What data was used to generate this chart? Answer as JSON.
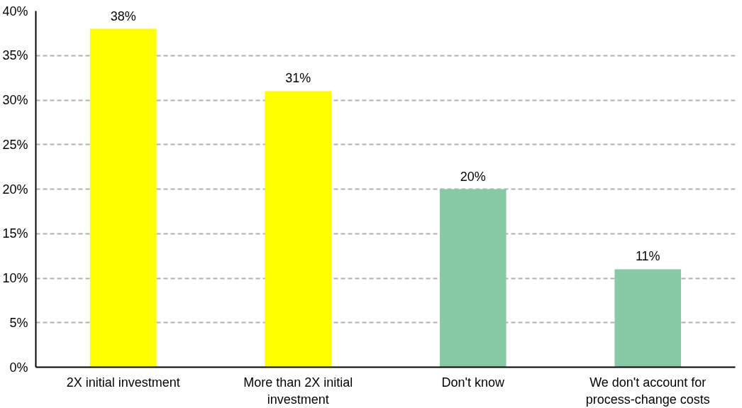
{
  "chart_data": {
    "type": "bar",
    "categories": [
      "2X initial investment",
      "More than 2X initial investment",
      "Don't know",
      "We don't account for process-change costs"
    ],
    "values": [
      38,
      31,
      20,
      11
    ],
    "colors": [
      "#ffff00",
      "#ffff00",
      "#88c9a5",
      "#88c9a5"
    ],
    "value_labels": [
      "38%",
      "31%",
      "20%",
      "11%"
    ],
    "ylim": [
      0,
      40
    ],
    "yticks": [
      {
        "value": 0,
        "label": "0%"
      },
      {
        "value": 5,
        "label": "5%"
      },
      {
        "value": 10,
        "label": "10%"
      },
      {
        "value": 15,
        "label": "15%"
      },
      {
        "value": 20,
        "label": "20%"
      },
      {
        "value": 25,
        "label": "25%"
      },
      {
        "value": 30,
        "label": "30%"
      },
      {
        "value": 35,
        "label": "35%"
      },
      {
        "value": 40,
        "label": "40%"
      }
    ],
    "grid": "y"
  }
}
